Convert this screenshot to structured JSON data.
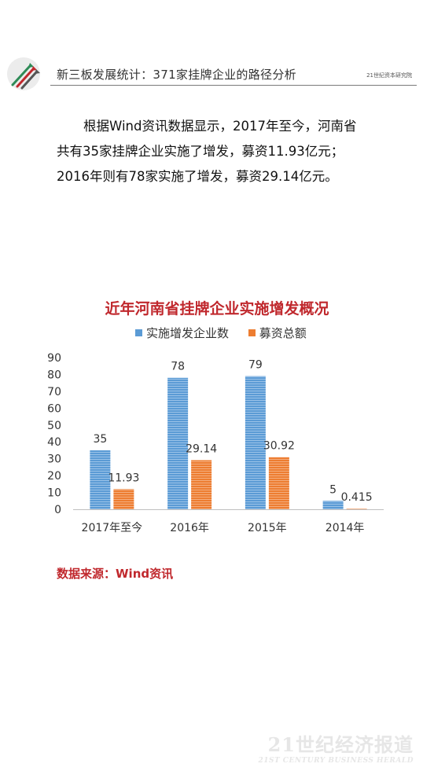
{
  "header": {
    "title": "新三板发展统计：371家挂牌企业的路径分析",
    "brand": "21世纪资本研究院"
  },
  "paragraph": {
    "line1": "根据Wind资讯数据显示，2017年至今，河南省",
    "line2": "共有35家挂牌企业实施了增发，募资11.93亿元；",
    "line3": "2016年则有78家实施了增发，募资29.14亿元。"
  },
  "chart_data": {
    "type": "bar",
    "title": "近年河南省挂牌企业实施增发概况",
    "categories": [
      "2017年至今",
      "2016年",
      "2015年",
      "2014年"
    ],
    "series": [
      {
        "name": "实施增发企业数",
        "values": [
          35,
          78,
          79,
          5
        ],
        "labels": [
          "35",
          "78",
          "79",
          "5"
        ],
        "color": "#5b9bd5"
      },
      {
        "name": "募资总额",
        "values": [
          11.93,
          29.14,
          30.92,
          0.415
        ],
        "labels": [
          "11.93",
          "29.14",
          "30.92",
          "0.415"
        ],
        "color": "#ed7d31"
      }
    ],
    "ylim": [
      0,
      90
    ],
    "yticks": [
      "0",
      "10",
      "20",
      "30",
      "40",
      "50",
      "60",
      "70",
      "80",
      "90"
    ],
    "legend": "top",
    "grid": false
  },
  "source": "数据来源：Wind资讯",
  "watermark": {
    "cn": "21世纪经济报道",
    "en": "21ST CENTURY BUSINESS HERALD"
  }
}
